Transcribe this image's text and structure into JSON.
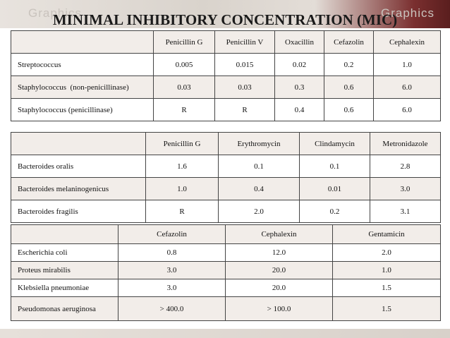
{
  "title": "MINIMAL INHIBITORY CONCENTRATION (MIC)",
  "watermark": [
    "Graphics",
    "Graphics"
  ],
  "table1": {
    "columns": [
      "Penicillin G",
      "Penicillin V",
      "Oxacillin",
      "Cefazolin",
      "Cephalexin"
    ],
    "rows": [
      {
        "organism": "Streptococcus",
        "values": [
          "0.005",
          "0.015",
          "0.02",
          "0.2",
          "1.0"
        ]
      },
      {
        "organism": "Staphylococcus  (non-penicillinase)",
        "values": [
          "0.03",
          "0.03",
          "0.3",
          "0.6",
          "6.0"
        ]
      },
      {
        "organism": "Staphylococcus (penicillinase)",
        "values": [
          "R",
          "R",
          "0.4",
          "0.6",
          "6.0"
        ]
      }
    ]
  },
  "table2": {
    "columns": [
      "Penicillin G",
      "Erythromycin",
      "Clindamycin",
      "Metronidazole"
    ],
    "rows": [
      {
        "organism": "Bacteroides oralis",
        "values": [
          "1.6",
          "0.1",
          "0.1",
          "2.8"
        ]
      },
      {
        "organism": "Bacteroides melaninogenicus",
        "values": [
          "1.0",
          "0.4",
          "0.01",
          "3.0"
        ]
      },
      {
        "organism": "Bacteroides fragilis",
        "values": [
          "R",
          "2.0",
          "0.2",
          "3.1"
        ]
      }
    ]
  },
  "table3": {
    "columns": [
      "Cefazolin",
      "Cephalexin",
      "Gentamicin"
    ],
    "rows": [
      {
        "organism": "Escherichia coli",
        "values": [
          "0.8",
          "12.0",
          "2.0"
        ]
      },
      {
        "organism": "Proteus mirabilis",
        "values": [
          "3.0",
          "20.0",
          "1.0"
        ]
      },
      {
        "organism": "Klebsiella pneumoniae",
        "values": [
          "3.0",
          "20.0",
          "1.5"
        ]
      },
      {
        "organism": "Pseudomonas aeruginosa",
        "values": [
          "> 400.0",
          "> 100.0",
          "1.5"
        ]
      }
    ]
  }
}
